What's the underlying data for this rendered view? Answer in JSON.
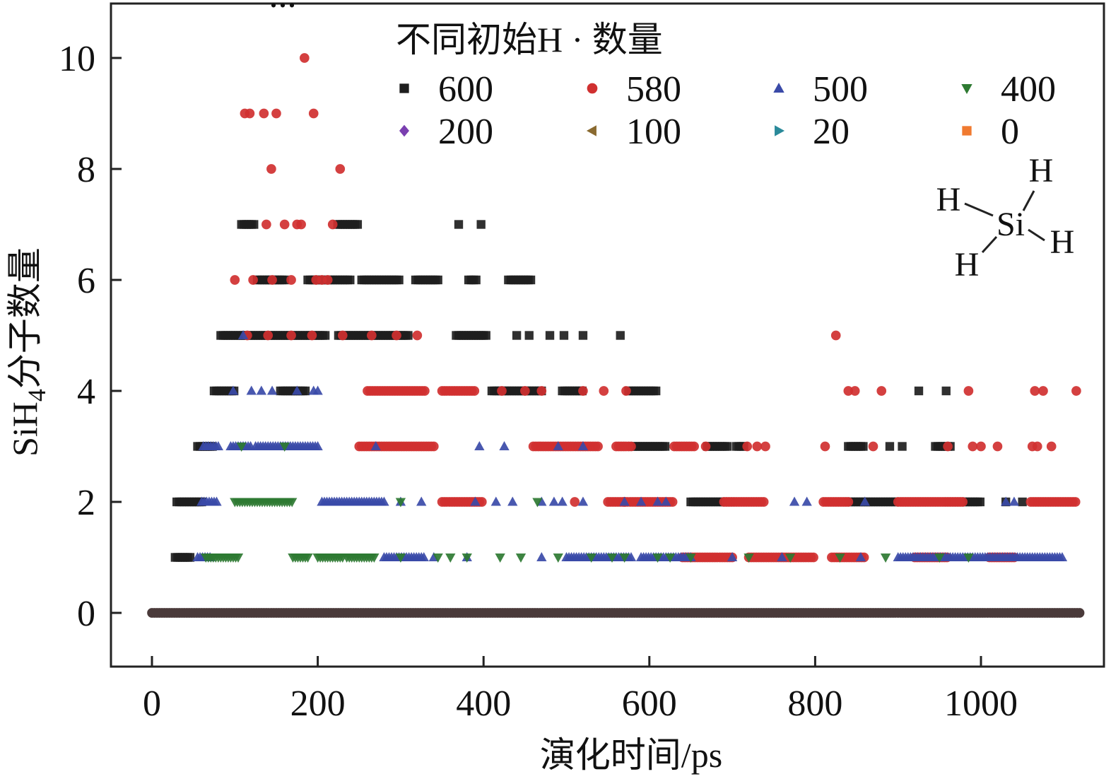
{
  "chart_data": {
    "type": "scatter",
    "xlabel": "演化时间/ps",
    "ylabel": {
      "prefix": "SiH",
      "subscript": "4",
      "suffix": "分子数量"
    },
    "xlim": [
      -25,
      1140
    ],
    "ylim": [
      -1,
      11
    ],
    "xticks": [
      0,
      200,
      400,
      600,
      800,
      1000
    ],
    "yticks": [
      0,
      2,
      4,
      6,
      8,
      10
    ],
    "top_mark": "...",
    "legend": {
      "title": "不同初始H · 数量",
      "placement": "top-right",
      "columns": 4
    },
    "annotation": {
      "type": "molecule-diagram",
      "center": "Si",
      "ligands": [
        "H",
        "H",
        "H",
        "H"
      ]
    },
    "series": [
      {
        "name": "600",
        "marker": "square",
        "color": "#1e1e1e",
        "runs": [
          {
            "y": 7,
            "from": 108,
            "to": 125
          },
          {
            "y": 7,
            "from": 224,
            "to": 250
          },
          {
            "y": 7,
            "x": [
              370,
              397
            ]
          },
          {
            "y": 6,
            "from": 127,
            "to": 160
          },
          {
            "y": 6,
            "from": 188,
            "to": 240
          },
          {
            "y": 6,
            "from": 253,
            "to": 300
          },
          {
            "y": 6,
            "from": 318,
            "to": 345
          },
          {
            "y": 6,
            "from": 382,
            "to": 392
          },
          {
            "y": 6,
            "from": 430,
            "to": 458
          },
          {
            "y": 5,
            "from": 83,
            "to": 210
          },
          {
            "y": 5,
            "from": 225,
            "to": 310
          },
          {
            "y": 5,
            "from": 367,
            "to": 405
          },
          {
            "y": 5,
            "x": [
              440,
              455,
              480,
              497,
              520,
              565
            ]
          },
          {
            "y": 4,
            "from": 75,
            "to": 100
          },
          {
            "y": 4,
            "from": 155,
            "to": 185
          },
          {
            "y": 4,
            "from": 410,
            "to": 470
          },
          {
            "y": 4,
            "from": 495,
            "to": 520
          },
          {
            "y": 4,
            "from": 575,
            "to": 608
          },
          {
            "y": 4,
            "x": [
              925,
              958
            ]
          },
          {
            "y": 3,
            "from": 55,
            "to": 75
          },
          {
            "y": 3,
            "from": 580,
            "to": 620
          },
          {
            "y": 3,
            "from": 670,
            "to": 695
          },
          {
            "y": 3,
            "from": 705,
            "to": 715
          },
          {
            "y": 3,
            "from": 840,
            "to": 860
          },
          {
            "y": 3,
            "x": [
              890,
              905
            ]
          },
          {
            "y": 3,
            "from": 945,
            "to": 965
          },
          {
            "y": 2,
            "from": 30,
            "to": 60
          },
          {
            "y": 2,
            "from": 650,
            "to": 700
          },
          {
            "y": 2,
            "from": 840,
            "to": 900
          },
          {
            "y": 2,
            "from": 960,
            "to": 1000
          },
          {
            "y": 2,
            "x": [
              1030,
              1050
            ]
          },
          {
            "y": 1,
            "from": 28,
            "to": 48
          }
        ]
      },
      {
        "name": "580",
        "marker": "circle",
        "color": "#d03030",
        "runs": [
          {
            "y": 10,
            "x": [
              184
            ]
          },
          {
            "y": 9,
            "x": [
              112,
              118,
              135,
              150,
              195
            ]
          },
          {
            "y": 8,
            "x": [
              144,
              227
            ]
          },
          {
            "y": 7,
            "x": [
              138,
              160,
              175,
              180,
              218
            ]
          },
          {
            "y": 6,
            "x": [
              100,
              122,
              145,
              168,
              198,
              205,
              212
            ]
          },
          {
            "y": 5,
            "x": [
              115,
              140,
              168,
              193,
              230,
              265,
              295,
              320
            ]
          },
          {
            "y": 5,
            "x": [
              825
            ]
          },
          {
            "y": 4,
            "from": 260,
            "to": 330
          },
          {
            "y": 4,
            "from": 350,
            "to": 390
          },
          {
            "y": 4,
            "x": [
              422,
              450,
              470,
              520,
              545,
              572
            ]
          },
          {
            "y": 4,
            "x": [
              840,
              848,
              880,
              985,
              1065,
              1075,
              1115
            ]
          },
          {
            "y": 3,
            "from": 250,
            "to": 340
          },
          {
            "y": 3,
            "from": 460,
            "to": 540
          },
          {
            "y": 3,
            "from": 560,
            "to": 580
          },
          {
            "y": 3,
            "from": 630,
            "to": 655
          },
          {
            "y": 3,
            "x": [
              668,
              718,
              730,
              740,
              812,
              870,
              960,
              990,
              1000,
              1020,
              1062,
              1068,
              1085
            ]
          },
          {
            "y": 2,
            "from": 350,
            "to": 400
          },
          {
            "y": 2,
            "from": 550,
            "to": 630
          },
          {
            "y": 2,
            "from": 690,
            "to": 740
          },
          {
            "y": 2,
            "from": 810,
            "to": 840
          },
          {
            "y": 2,
            "from": 900,
            "to": 980
          },
          {
            "y": 2,
            "from": 1060,
            "to": 1115
          },
          {
            "y": 2,
            "x": [
              510,
              570
            ]
          },
          {
            "y": 1,
            "from": 640,
            "to": 700
          },
          {
            "y": 1,
            "from": 720,
            "to": 800
          },
          {
            "y": 1,
            "from": 820,
            "to": 860
          },
          {
            "y": 1,
            "from": 920,
            "to": 960
          },
          {
            "y": 1,
            "from": 1010,
            "to": 1040
          }
        ]
      },
      {
        "name": "500",
        "marker": "triangle-up",
        "color": "#3a4aa8",
        "runs": [
          {
            "y": 5,
            "x": [
              110
            ]
          },
          {
            "y": 4,
            "x": [
              98,
              120,
              132,
              145,
              175,
              195,
              200
            ]
          },
          {
            "y": 3,
            "from": 62,
            "to": 80
          },
          {
            "y": 3,
            "from": 95,
            "to": 120
          },
          {
            "y": 3,
            "from": 125,
            "to": 200
          },
          {
            "y": 3,
            "x": [
              270,
              395,
              425,
              490,
              520
            ]
          },
          {
            "y": 2,
            "from": 60,
            "to": 80
          },
          {
            "y": 2,
            "from": 205,
            "to": 280
          },
          {
            "y": 2,
            "x": [
              300,
              325,
              390,
              415,
              435,
              470,
              485,
              495,
              520,
              570,
              590,
              610,
              620,
              775,
              790,
              860,
              1030,
              1040
            ]
          },
          {
            "y": 1,
            "from": 55,
            "to": 70
          },
          {
            "y": 1,
            "from": 280,
            "to": 330
          },
          {
            "y": 1,
            "from": 500,
            "to": 580
          },
          {
            "y": 1,
            "from": 590,
            "to": 650
          },
          {
            "y": 1,
            "from": 900,
            "to": 1100
          },
          {
            "y": 1,
            "x": [
              340,
              380,
              470,
              700,
              760,
              855
            ]
          }
        ]
      },
      {
        "name": "400",
        "marker": "triangle-down",
        "color": "#2e7a32",
        "runs": [
          {
            "y": 3,
            "x": [
              108,
              160
            ]
          },
          {
            "y": 2,
            "from": 100,
            "to": 170
          },
          {
            "y": 2,
            "x": [
              300,
              465
            ]
          },
          {
            "y": 1,
            "from": 65,
            "to": 105
          },
          {
            "y": 1,
            "from": 170,
            "to": 190
          },
          {
            "y": 1,
            "from": 200,
            "to": 230
          },
          {
            "y": 1,
            "from": 235,
            "to": 270
          },
          {
            "y": 1,
            "x": [
              300,
              345,
              360,
              380,
              420,
              445,
              490,
              530,
              555,
              570,
              610,
              625,
              650,
              720,
              770,
              830,
              885,
              950,
              985
            ]
          }
        ]
      },
      {
        "name": "200",
        "marker": "diamond",
        "color": "#7a3fb0",
        "runs": []
      },
      {
        "name": "100",
        "marker": "triangle-left",
        "color": "#8a6a30",
        "runs": []
      },
      {
        "name": "20",
        "marker": "triangle-right",
        "color": "#2a8a9a",
        "runs": []
      },
      {
        "name": "0",
        "marker": "square",
        "color": "#f07a30",
        "runs": []
      }
    ],
    "baseline": {
      "y": 0,
      "from": 0,
      "to": 1120,
      "note": "all series overlap at y = 0"
    }
  }
}
